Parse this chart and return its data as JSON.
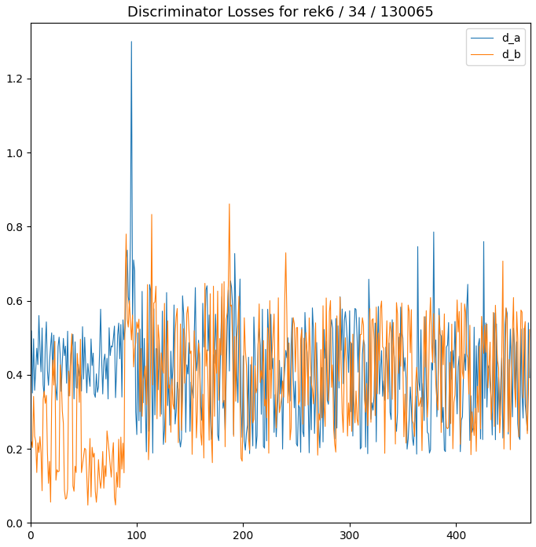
{
  "title": "Discriminator Losses for rek6 / 34 / 130065",
  "xlim": [
    0,
    470
  ],
  "ylim": [
    0.0,
    1.35
  ],
  "yticks": [
    0.0,
    0.2,
    0.4,
    0.6,
    0.8,
    1.0,
    1.2
  ],
  "xticks": [
    0,
    100,
    200,
    300,
    400
  ],
  "color_da": "#1f77b4",
  "color_db": "#ff7f0e",
  "label_da": "d_a",
  "label_db": "d_b",
  "linewidth": 0.8,
  "figsize": [
    6.82,
    6.96
  ],
  "dpi": 100,
  "title_fontsize": 13,
  "legend_loc": "upper right"
}
